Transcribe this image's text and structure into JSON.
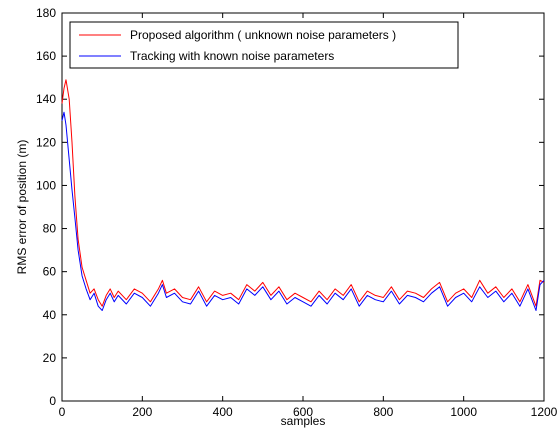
{
  "chart_data": {
    "type": "line",
    "xlabel": "samples",
    "ylabel": "RMS error of position (m)",
    "xlim": [
      0,
      1200
    ],
    "ylim": [
      0,
      180
    ],
    "xticks": [
      0,
      200,
      400,
      600,
      800,
      1000,
      1200
    ],
    "yticks": [
      0,
      20,
      40,
      60,
      80,
      100,
      120,
      140,
      160,
      180
    ],
    "grid": false,
    "legend_position": "top-left",
    "series": [
      {
        "name": "Proposed algorithm ( unknown noise parameters )",
        "color": "#ff0000",
        "x": [
          0,
          5,
          10,
          18,
          25,
          32,
          40,
          50,
          60,
          70,
          80,
          90,
          100,
          110,
          120,
          130,
          140,
          160,
          180,
          200,
          220,
          240,
          250,
          260,
          280,
          300,
          320,
          340,
          360,
          380,
          400,
          420,
          440,
          460,
          480,
          500,
          520,
          540,
          560,
          580,
          600,
          620,
          640,
          660,
          680,
          700,
          720,
          740,
          760,
          780,
          800,
          820,
          840,
          860,
          880,
          900,
          920,
          940,
          960,
          980,
          1000,
          1020,
          1040,
          1060,
          1080,
          1100,
          1120,
          1140,
          1160,
          1180,
          1190,
          1200
        ],
        "y": [
          138,
          145,
          149,
          140,
          120,
          95,
          75,
          62,
          56,
          50,
          52,
          47,
          44,
          49,
          52,
          48,
          51,
          47,
          52,
          50,
          46,
          52,
          56,
          50,
          52,
          48,
          47,
          53,
          46,
          51,
          49,
          50,
          47,
          54,
          51,
          55,
          49,
          53,
          47,
          50,
          48,
          46,
          51,
          47,
          52,
          49,
          54,
          46,
          51,
          49,
          48,
          53,
          47,
          51,
          50,
          48,
          52,
          55,
          46,
          50,
          52,
          48,
          56,
          50,
          53,
          48,
          52,
          46,
          54,
          44,
          56,
          55
        ]
      },
      {
        "name": "Tracking with known noise parameters",
        "color": "#0000ff",
        "x": [
          0,
          5,
          10,
          18,
          25,
          32,
          40,
          50,
          60,
          70,
          80,
          90,
          100,
          110,
          120,
          130,
          140,
          160,
          180,
          200,
          220,
          240,
          250,
          260,
          280,
          300,
          320,
          340,
          360,
          380,
          400,
          420,
          440,
          460,
          480,
          500,
          520,
          540,
          560,
          580,
          600,
          620,
          640,
          660,
          680,
          700,
          720,
          740,
          760,
          780,
          800,
          820,
          840,
          860,
          880,
          900,
          920,
          940,
          960,
          980,
          1000,
          1020,
          1040,
          1060,
          1080,
          1100,
          1120,
          1140,
          1160,
          1180,
          1190,
          1200
        ],
        "y": [
          130,
          134,
          128,
          112,
          98,
          85,
          70,
          58,
          52,
          47,
          50,
          44,
          42,
          47,
          50,
          46,
          49,
          45,
          50,
          48,
          44,
          50,
          54,
          48,
          50,
          46,
          45,
          51,
          44,
          49,
          47,
          48,
          45,
          52,
          49,
          53,
          47,
          51,
          45,
          48,
          46,
          44,
          49,
          45,
          50,
          47,
          52,
          44,
          49,
          47,
          46,
          51,
          45,
          49,
          48,
          46,
          50,
          53,
          44,
          48,
          50,
          46,
          53,
          48,
          51,
          46,
          50,
          44,
          52,
          42,
          54,
          56
        ]
      }
    ]
  }
}
